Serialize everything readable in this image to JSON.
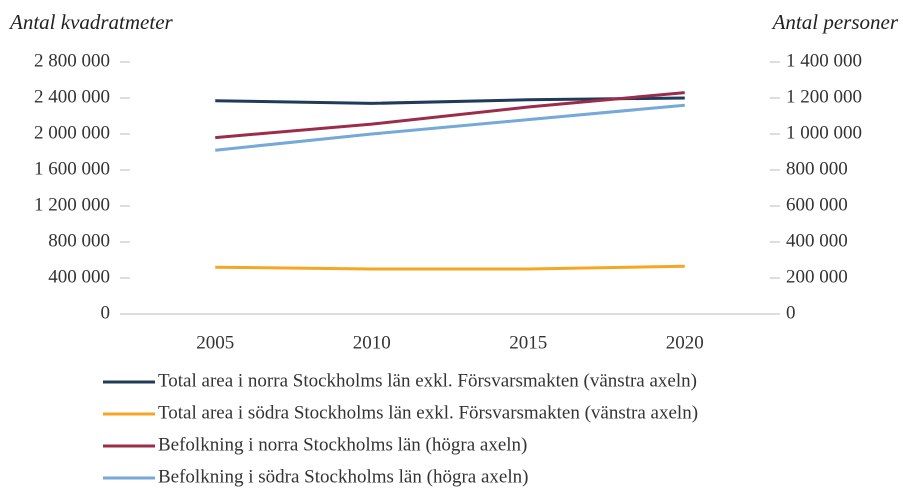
{
  "chart_data": {
    "type": "line",
    "y_label": "Antal kvadratmeter",
    "y2_label": "Antal personer",
    "categories": [
      "2005",
      "2010",
      "2015",
      "2020"
    ],
    "series": [
      {
        "name": "Total area i norra Stockholms län exkl. Försvarsmakten (vänstra axeln)",
        "color": "#1f3b57",
        "values": [
          2370000,
          2340000,
          2380000,
          2400000
        ]
      },
      {
        "name": "Total area i södra Stockholms län exkl. Försvarsmakten (vänstra axeln)",
        "color": "#f5a623",
        "values": [
          520000,
          500000,
          500000,
          530000
        ]
      },
      {
        "name": "Befolkning i norra Stockholms län (högra axeln)",
        "color": "#9b2d4a",
        "axis": "y2",
        "values": [
          980000,
          1055000,
          1150000,
          1230000
        ]
      },
      {
        "name": "Befolkning i södra Stockholms län (högra axeln)",
        "color": "#74a9d8",
        "axis": "y2",
        "values": [
          910000,
          1000000,
          1080000,
          1160000
        ]
      }
    ],
    "ylim": [
      0,
      2800000
    ],
    "yticks": [
      0,
      {
        "value": 400000,
        "label": "400 000"
      },
      {
        "value": 800000,
        "label": "800 000"
      },
      {
        "value": 1200000,
        "label": "1 200 000"
      },
      {
        "value": 1600000,
        "label": "1 600 000"
      },
      {
        "value": 2000000,
        "label": "2 000 000"
      },
      {
        "value": 2400000,
        "label": "2 400 000"
      },
      {
        "value": 2800000,
        "label": "2 800 000"
      }
    ],
    "y2lim": [
      0,
      1400000
    ],
    "y2ticks": [
      0,
      {
        "value": 200000,
        "label": "200 000"
      },
      {
        "value": 400000,
        "label": "400 000"
      },
      {
        "value": 600000,
        "label": "600 000"
      },
      {
        "value": 800000,
        "label": "800 000"
      },
      {
        "value": 1000000,
        "label": "1 000 000"
      },
      {
        "value": 1200000,
        "label": "1 200 000"
      },
      {
        "value": 1400000,
        "label": "1 400 000"
      }
    ],
    "grid": false,
    "legend": "bottom"
  }
}
